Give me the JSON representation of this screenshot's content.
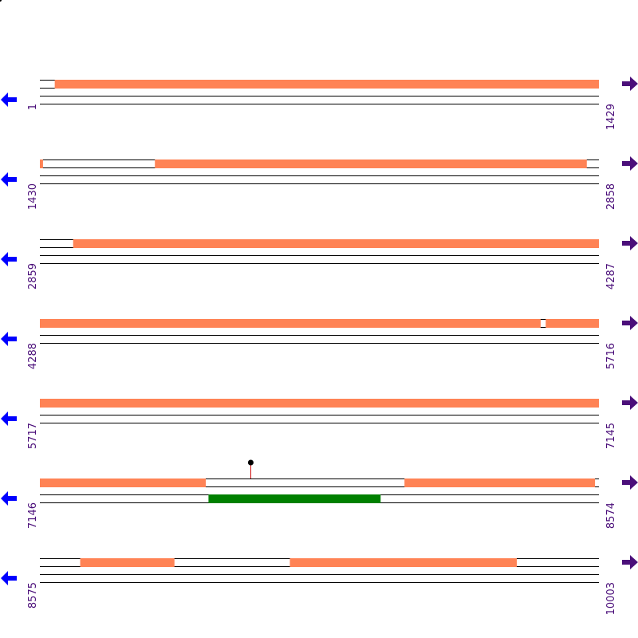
{
  "sequence": {
    "start": 1,
    "end": 10003,
    "row_length": 1429
  },
  "colors": {
    "feature": "#ff8355",
    "green_feature": "#008000",
    "left_arrow": "#0000ff",
    "right_arrow": "#4b0f7a",
    "line": "#000000",
    "marker_stem": "#cc0000",
    "position_text": "#4b0f7a"
  },
  "rows": [
    {
      "start_label": "1",
      "end_label": "1429",
      "start": 1,
      "end": 1429,
      "features": [
        {
          "from": 39,
          "to": 1429
        }
      ],
      "green": [],
      "markers": []
    },
    {
      "start_label": "1430",
      "end_label": "2858",
      "start": 1430,
      "end": 2858,
      "features": [
        {
          "from": 1430,
          "to": 1437
        },
        {
          "from": 1724,
          "to": 2827
        }
      ],
      "green": [],
      "markers": []
    },
    {
      "start_label": "2859",
      "end_label": "4287",
      "start": 2859,
      "end": 4287,
      "features": [
        {
          "from": 2944,
          "to": 4287
        }
      ],
      "green": [],
      "markers": []
    },
    {
      "start_label": "4288",
      "end_label": "5716",
      "start": 4288,
      "end": 5716,
      "features": [
        {
          "from": 4288,
          "to": 5567
        },
        {
          "from": 5581,
          "to": 5716
        }
      ],
      "green": [],
      "markers": []
    },
    {
      "start_label": "5717",
      "end_label": "7145",
      "start": 5717,
      "end": 7145,
      "features": [
        {
          "from": 5717,
          "to": 7145
        }
      ],
      "green": [],
      "markers": []
    },
    {
      "start_label": "7146",
      "end_label": "8574",
      "start": 7146,
      "end": 8574,
      "features": [
        {
          "from": 7146,
          "to": 7569
        },
        {
          "from": 8078,
          "to": 8564
        }
      ],
      "green": [
        {
          "from": 7577,
          "to": 8016
        }
      ],
      "markers": [
        {
          "at": 7685
        }
      ]
    },
    {
      "start_label": "8575",
      "end_label": "10003",
      "start": 8575,
      "end": 10003,
      "features": [
        {
          "from": 8678,
          "to": 8918
        },
        {
          "from": 9214,
          "to": 9793
        }
      ],
      "green": [],
      "markers": []
    }
  ]
}
